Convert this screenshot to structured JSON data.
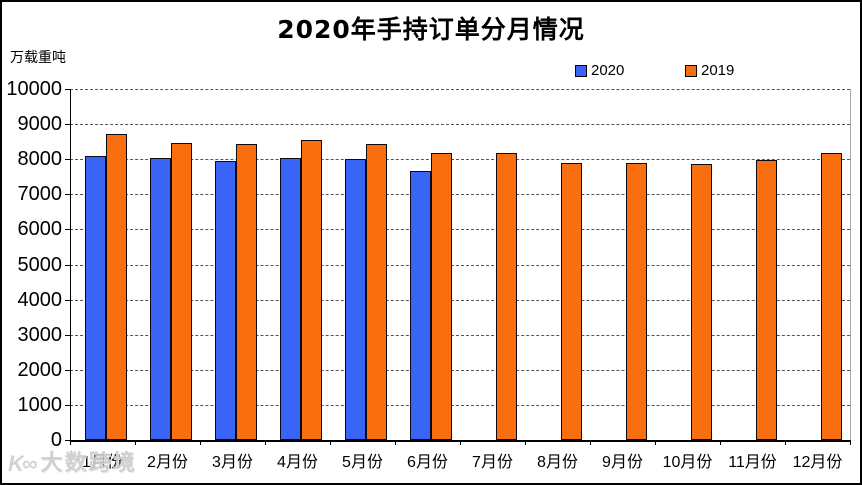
{
  "chart_data": {
    "type": "bar",
    "title": "2020年手持订单分月情况",
    "ylabel": "万载重吨",
    "xlabel": "",
    "categories": [
      "1月份",
      "2月份",
      "3月份",
      "4月份",
      "5月份",
      "6月份",
      "7月份",
      "8月份",
      "9月份",
      "10月份",
      "11月份",
      "12月份"
    ],
    "series": [
      {
        "name": "2020",
        "color": "#3A64F5",
        "values": [
          8090,
          8030,
          7950,
          8040,
          8020,
          7650,
          null,
          null,
          null,
          null,
          null,
          null
        ]
      },
      {
        "name": "2019",
        "color": "#F96E0E",
        "values": [
          8730,
          8470,
          8420,
          8540,
          8440,
          8170,
          8190,
          7890,
          7900,
          7870,
          7980,
          8170
        ]
      }
    ],
    "ylim": [
      0,
      10000
    ],
    "yticks": [
      0,
      1000,
      2000,
      3000,
      4000,
      5000,
      6000,
      7000,
      8000,
      9000,
      10000
    ],
    "grid": "horizontal-dashed",
    "legend_position": "top-right",
    "bar_outline_color": "#000000"
  },
  "watermark": {
    "icon": "K∞",
    "text": "大数跨境"
  }
}
